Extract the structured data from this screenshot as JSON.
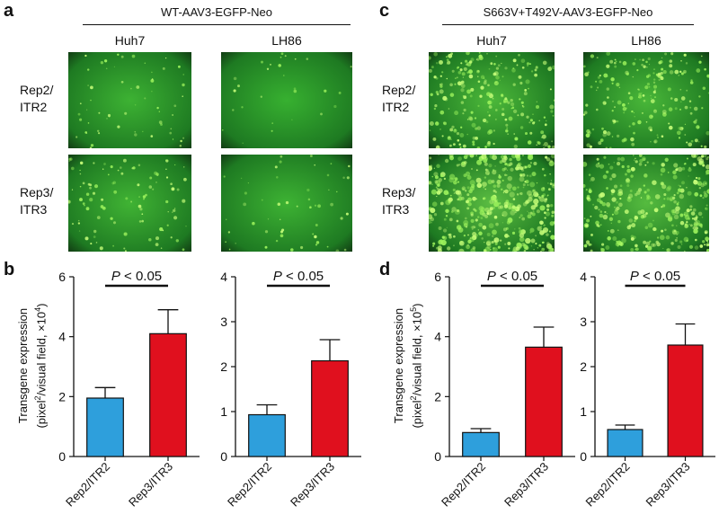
{
  "figure": {
    "panels": {
      "a": {
        "letter": "a",
        "header": "WT-AAV3-EGFP-Neo",
        "columns": [
          "Huh7",
          "LH86"
        ],
        "rows": [
          {
            "line1": "Rep2/",
            "line2": "ITR2"
          },
          {
            "line1": "Rep3/",
            "line2": "ITR3"
          }
        ]
      },
      "c": {
        "letter": "c",
        "header": "S663V+T492V-AAV3-EGFP-Neo",
        "columns": [
          "Huh7",
          "LH86"
        ],
        "rows": [
          {
            "line1": "Rep2/",
            "line2": "ITR2"
          },
          {
            "line1": "Rep3/",
            "line2": "ITR3"
          }
        ]
      },
      "b": {
        "letter": "b",
        "ylabel_line1": "Transgene expression",
        "ylabel_line2_pre": "(pixel",
        "ylabel_line2_sup1": "2",
        "ylabel_line2_mid": "/visual field, ×10",
        "ylabel_line2_sup2": "4",
        "ylabel_line2_post": ")"
      },
      "d": {
        "letter": "d",
        "ylabel_line1": "Transgene expression",
        "ylabel_line2_pre": "(pixel",
        "ylabel_line2_sup1": "2",
        "ylabel_line2_mid": "/visual field, ×10",
        "ylabel_line2_sup2": "5",
        "ylabel_line2_post": ")"
      }
    },
    "colors": {
      "rep2_bar": "#2e9fdc",
      "rep3_bar": "#e0101e",
      "micro_bg": "#1f7a1f"
    },
    "micrographs": [
      {
        "panel": "a",
        "column": "Huh7",
        "row": "Rep2/ITR2",
        "cell_density": 0.1,
        "brightness": 0.35
      },
      {
        "panel": "a",
        "column": "LH86",
        "row": "Rep2/ITR2",
        "cell_density": 0.02,
        "brightness": 0.25
      },
      {
        "panel": "a",
        "column": "Huh7",
        "row": "Rep3/ITR3",
        "cell_density": 0.2,
        "brightness": 0.4
      },
      {
        "panel": "a",
        "column": "LH86",
        "row": "Rep3/ITR3",
        "cell_density": 0.08,
        "brightness": 0.35
      },
      {
        "panel": "c",
        "column": "Huh7",
        "row": "Rep2/ITR2",
        "cell_density": 0.55,
        "brightness": 0.6
      },
      {
        "panel": "c",
        "column": "LH86",
        "row": "Rep2/ITR2",
        "cell_density": 0.45,
        "brightness": 0.55
      },
      {
        "panel": "c",
        "column": "Huh7",
        "row": "Rep3/ITR3",
        "cell_density": 1.0,
        "brightness": 0.85
      },
      {
        "panel": "c",
        "column": "LH86",
        "row": "Rep3/ITR3",
        "cell_density": 0.75,
        "brightness": 0.75
      }
    ]
  },
  "chart_data": [
    {
      "type": "bar",
      "panel": "b",
      "categories": [
        "Rep2/ITR2",
        "Rep3/ITR3"
      ],
      "values": [
        1.95,
        4.1
      ],
      "errors": [
        0.35,
        0.8
      ],
      "ylim": [
        0,
        6
      ],
      "yticks": [
        0,
        2,
        4,
        6
      ],
      "annotation": "P < 0.05",
      "annotation_italic": "P",
      "annotation_rest": " < 0.05"
    },
    {
      "type": "bar",
      "panel": "b",
      "categories": [
        "Rep2/ITR2",
        "Rep3/ITR3"
      ],
      "values": [
        0.93,
        2.13
      ],
      "errors": [
        0.22,
        0.47
      ],
      "ylim": [
        0,
        4
      ],
      "yticks": [
        0,
        1,
        2,
        3,
        4
      ],
      "annotation": "P < 0.05",
      "annotation_italic": "P",
      "annotation_rest": " < 0.05"
    },
    {
      "type": "bar",
      "panel": "d",
      "categories": [
        "Rep2/ITR2",
        "Rep3/ITR3"
      ],
      "values": [
        0.8,
        3.65
      ],
      "errors": [
        0.13,
        0.67
      ],
      "ylim": [
        0,
        6
      ],
      "yticks": [
        0,
        2,
        4,
        6
      ],
      "annotation": "P < 0.05",
      "annotation_italic": "P",
      "annotation_rest": " < 0.05"
    },
    {
      "type": "bar",
      "panel": "d",
      "categories": [
        "Rep2/ITR2",
        "Rep3/ITR3"
      ],
      "values": [
        0.6,
        2.48
      ],
      "errors": [
        0.1,
        0.47
      ],
      "ylim": [
        0,
        4
      ],
      "yticks": [
        0,
        1,
        2,
        3,
        4
      ],
      "annotation": "P < 0.05",
      "annotation_italic": "P",
      "annotation_rest": " < 0.05"
    }
  ]
}
